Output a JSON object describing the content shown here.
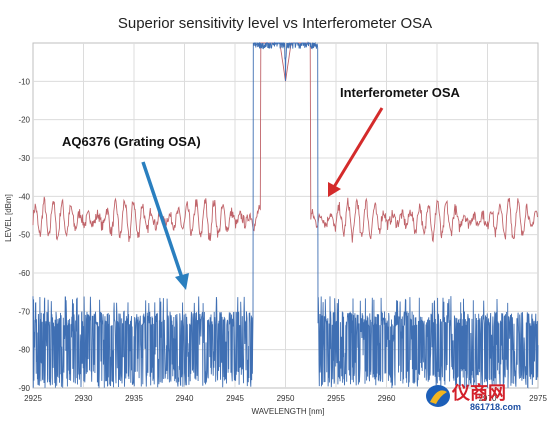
{
  "chart_data": {
    "type": "line",
    "title": "Superior sensitivity level vs Interferometer OSA",
    "xlabel": "WAVELENGTH  [nm]",
    "ylabel": "LEVEL  [dBm]",
    "xlim": [
      2925,
      2975
    ],
    "ylim": [
      -90,
      0
    ],
    "x_ticks": [
      "2925",
      "2930",
      "2935",
      "2940",
      "2945",
      "2950",
      "2955",
      "2960",
      "2965",
      "2970",
      "2975"
    ],
    "y_ticks": [
      "-10",
      "-20",
      "-30",
      "-40",
      "-50",
      "-60",
      "-70",
      "-80",
      "-90"
    ],
    "grid": true,
    "series": [
      {
        "name": "Interferometer OSA",
        "color": "#c0646a",
        "baseline_dbm": -46,
        "ripple_db": 5,
        "peak": {
          "x": 2950,
          "y": -10
        }
      },
      {
        "name": "AQ6376 (Grating OSA)",
        "color": "#3f6fb3",
        "noise_floor_dbm": [
          -90,
          -67
        ],
        "peak": {
          "x": 2950,
          "y": -10
        }
      }
    ],
    "annotations": [
      {
        "text": "Interferometer OSA",
        "series": "Interferometer OSA",
        "arrow_color": "#d42b2b"
      },
      {
        "text": "AQ6376 (Grating OSA)",
        "series": "AQ6376 (Grating OSA)",
        "arrow_color": "#2a7fbf"
      }
    ]
  },
  "watermark": {
    "text": "仪商网",
    "sub": "861718.com"
  }
}
